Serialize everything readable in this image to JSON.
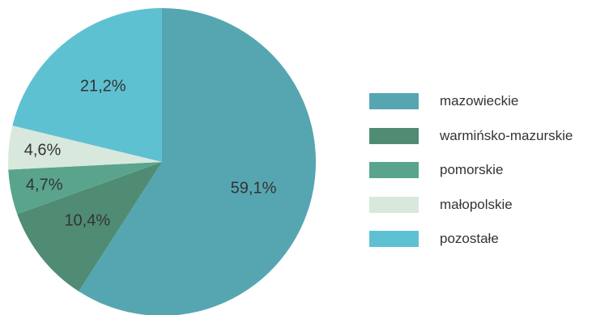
{
  "chart_data": {
    "type": "pie",
    "start": "top",
    "direction": "clockwise",
    "slices": [
      {
        "name": "mazowieckie",
        "value": 59.1,
        "label": "59,1%",
        "color": "#56a6b2"
      },
      {
        "name": "warmińsko-mazurskie",
        "value": 10.4,
        "label": "10,4%",
        "color": "#4f8c73"
      },
      {
        "name": "pomorskie",
        "value": 4.7,
        "label": "4,7%",
        "color": "#5aa48d"
      },
      {
        "name": "małopolskie",
        "value": 4.6,
        "label": "4,6%",
        "color": "#d9e8dc"
      },
      {
        "name": "pozostałe",
        "value": 21.2,
        "label": "21,2%",
        "color": "#5ec1d2"
      }
    ],
    "legend_position": "right"
  }
}
